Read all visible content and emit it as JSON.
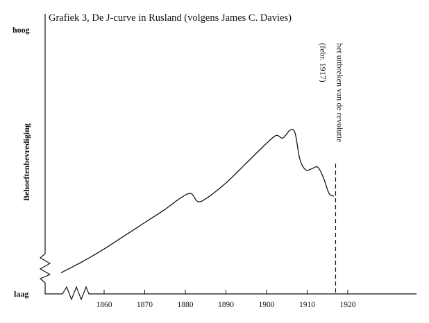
{
  "chart_data": {
    "type": "line",
    "title": "Grafiek 3, De J-curve in Rusland (volgens James C. Davies)",
    "ylabel": "Behoeftenbevrediging",
    "xlabel": "",
    "y_top_label": "hoog",
    "y_bottom_label": "laag",
    "xlim": [
      1843,
      1935
    ],
    "ylim": [
      0,
      100
    ],
    "x_ticks": [
      1860,
      1870,
      1880,
      1890,
      1900,
      1910,
      1920
    ],
    "x_tick_labels": [
      "1860",
      "1870",
      "1880",
      "1890",
      "1900",
      "1910",
      "1920"
    ],
    "axis_breaks": [
      "x",
      "y"
    ],
    "grid": false,
    "color": "#111111",
    "series": [
      {
        "x": [
          1849.4,
          1855,
          1860,
          1865,
          1870,
          1875,
          1879,
          1881.4,
          1883,
          1885,
          1890,
          1895,
          1900,
          1902.4,
          1904,
          1905.8,
          1907,
          1908.2,
          1909.6,
          1911,
          1912.6,
          1914,
          1915.4,
          1916.6
        ],
        "y": [
          8,
          12.5,
          17,
          22,
          27,
          32,
          36.5,
          38,
          35,
          36,
          42,
          49.5,
          57,
          60,
          59,
          62,
          61,
          51,
          47,
          47.3,
          48,
          44,
          38,
          37
        ]
      }
    ],
    "annotations": [
      {
        "x": 1917,
        "style": "dashed-vertical",
        "text": "het uitbreken van de revolutie",
        "subtext": "(febr. 1917)"
      }
    ]
  }
}
